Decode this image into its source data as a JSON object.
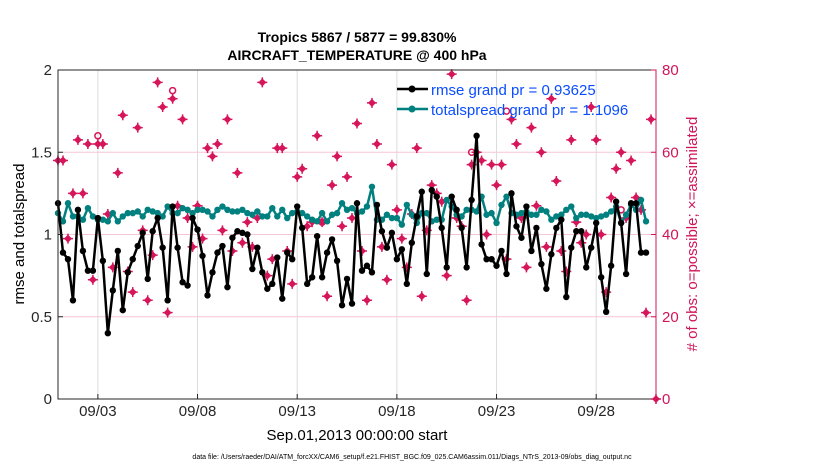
{
  "title_line1": "Tropics 5867 / 5877 = 99.830%",
  "title_line2": "AIRCRAFT_TEMPERATURE @ 400 hPa",
  "footnote": "data file: /Users/raeder/DAI/ATM_forcXX/CAM6_setup/f.e21.FHIST_BGC.f09_025.CAM6assim.011/Diags_NTrS_2013-09/obs_diag_output.nc",
  "colors": {
    "rmse": "#000000",
    "spread": "#00807f",
    "obs": "#d6155a",
    "legend_text": "#0a4dff",
    "grid_h": "#f5c6d6",
    "grid_v": "#dcdcdc"
  },
  "chart_data": {
    "type": "line",
    "title": "Tropics 5867 / 5877 = 99.830% AIRCRAFT_TEMPERATURE @ 400 hPa",
    "xlabel": "Sep.01,2013 00:00:00 start",
    "ylabel": "rmse and totalspread",
    "y2label": "# of obs: o=possible; ×=assimilated",
    "x_units": "days since Sep.01,2013 00:00:00",
    "x_step_days": 0.25,
    "xlim": [
      0,
      30
    ],
    "ylim": [
      0,
      2
    ],
    "y2lim": [
      0,
      80
    ],
    "xticks": [
      {
        "day": 2,
        "label": "09/03"
      },
      {
        "day": 7,
        "label": "09/08"
      },
      {
        "day": 12,
        "label": "09/13"
      },
      {
        "day": 17,
        "label": "09/18"
      },
      {
        "day": 22,
        "label": "09/23"
      },
      {
        "day": 27,
        "label": "09/28"
      }
    ],
    "yticks": [
      {
        "v": 0,
        "label": "0"
      },
      {
        "v": 0.5,
        "label": "0.5"
      },
      {
        "v": 1,
        "label": "1"
      },
      {
        "v": 1.5,
        "label": "1.5"
      },
      {
        "v": 2,
        "label": "2"
      }
    ],
    "y2ticks": [
      {
        "v": 0,
        "label": "0"
      },
      {
        "v": 20,
        "label": "20"
      },
      {
        "v": 40,
        "label": "40"
      },
      {
        "v": 60,
        "label": "60"
      },
      {
        "v": 80,
        "label": "80"
      }
    ],
    "grid": true,
    "legend_placement": "top-right",
    "series": [
      {
        "name": "rmse",
        "legend": "rmse grand pr = 0.93625",
        "axis": "left",
        "values": [
          1.19,
          0.89,
          0.85,
          0.6,
          1.15,
          0.9,
          0.78,
          0.78,
          1.1,
          0.84,
          0.4,
          0.66,
          0.9,
          0.54,
          0.77,
          0.85,
          0.93,
          1.01,
          0.73,
          1.02,
          1.1,
          0.92,
          0.6,
          1.17,
          0.92,
          0.71,
          0.69,
          1.1,
          1.03,
          0.87,
          0.63,
          0.77,
          0.89,
          0.93,
          0.68,
          0.98,
          1.02,
          1.01,
          1.0,
          0.79,
          0.92,
          0.77,
          0.67,
          0.7,
          0.86,
          0.61,
          0.89,
          0.85,
          1.17,
          1.04,
          0.7,
          0.74,
          0.99,
          0.74,
          0.89,
          0.97,
          0.84,
          0.57,
          0.73,
          0.58,
          1.19,
          0.78,
          0.81,
          0.77,
          1.18,
          1.02,
          0.92,
          1.01,
          0.85,
          0.91,
          0.7,
          0.95,
          1.11,
          1.26,
          0.76,
          1.27,
          1.23,
          1.04,
          0.8,
          1.23,
          1.15,
          1.04,
          0.8,
          1.21,
          1.6,
          0.94,
          0.85,
          0.85,
          0.81,
          0.9,
          0.76,
          1.25,
          1.05,
          0.98,
          1.17,
          0.9,
          1.04,
          0.82,
          0.67,
          0.88,
          1.04,
          1.09,
          0.62,
          0.92,
          1.02,
          1.02,
          0.8,
          0.92,
          1.07,
          0.74,
          0.53,
          0.81,
          1.2,
          1.07,
          0.76,
          1.19,
          1.19,
          0.89,
          0.89
        ]
      },
      {
        "name": "totalspread",
        "legend": "totalspread grand pr = 1.1096",
        "axis": "left",
        "values": [
          1.13,
          1.08,
          1.19,
          1.11,
          1.11,
          1.09,
          1.16,
          1.11,
          1.09,
          1.09,
          1.08,
          1.13,
          1.08,
          1.11,
          1.13,
          1.13,
          1.14,
          1.11,
          1.15,
          1.14,
          1.13,
          1.11,
          1.17,
          1.13,
          1.13,
          1.16,
          1.15,
          1.13,
          1.15,
          1.15,
          1.14,
          1.11,
          1.15,
          1.17,
          1.15,
          1.14,
          1.14,
          1.15,
          1.13,
          1.12,
          1.14,
          1.11,
          1.11,
          1.16,
          1.11,
          1.15,
          1.1,
          1.13,
          1.14,
          1.13,
          1.11,
          1.09,
          1.08,
          1.13,
          1.08,
          1.12,
          1.13,
          1.19,
          1.15,
          1.16,
          1.13,
          1.14,
          1.17,
          1.29,
          1.09,
          1.09,
          1.12,
          1.1,
          1.1,
          1.06,
          1.18,
          1.12,
          1.07,
          1.13,
          1.13,
          1.08,
          1.09,
          1.09,
          1.21,
          1.17,
          1.12,
          1.11,
          1.15,
          1.15,
          1.14,
          1.23,
          1.12,
          1.13,
          1.07,
          1.18,
          1.23,
          1.13,
          1.12,
          1.13,
          1.14,
          1.12,
          1.12,
          1.15,
          1.14,
          1.09,
          1.11,
          1.12,
          1.15,
          1.17,
          1.1,
          1.12,
          1.12,
          1.11,
          1.1,
          1.11,
          1.12,
          1.14,
          1.17,
          1.07,
          1.12,
          1.18,
          1.15,
          1.21,
          1.08
        ]
      },
      {
        "name": "obs_assimilated",
        "axis": "right",
        "values": [
          58,
          58,
          39,
          50,
          63,
          50,
          62,
          29,
          62,
          62,
          45,
          32,
          55,
          69,
          31,
          26,
          66,
          41,
          24,
          35,
          77,
          71,
          21,
          73,
          47,
          68,
          44,
          37,
          47,
          39,
          61,
          59,
          62,
          41,
          68,
          36,
          55,
          38,
          43,
          37,
          44,
          77,
          30,
          34,
          61,
          61,
          36,
          28,
          54,
          56,
          42,
          43,
          64,
          43,
          25,
          52,
          59,
          42,
          54,
          44,
          67,
          36,
          24,
          72,
          62,
          37,
          29,
          57,
          46,
          39,
          32,
          45,
          61,
          25,
          41,
          52,
          50,
          48,
          30,
          79,
          44,
          42,
          24,
          57,
          60,
          58,
          40,
          57,
          52,
          57,
          34,
          68,
          62,
          44,
          32,
          66,
          47,
          60,
          37,
          73,
          53,
          36,
          31,
          63,
          43,
          38,
          40,
          71,
          63,
          40,
          26,
          49,
          56,
          60,
          44,
          58,
          49,
          46,
          21,
          68,
          0
        ]
      },
      {
        "name": "obs_possible_extra",
        "axis": "right",
        "points": [
          {
            "day": 2.0,
            "value": 64
          },
          {
            "day": 5.75,
            "value": 75
          },
          {
            "day": 13.25,
            "value": 43
          },
          {
            "day": 20.75,
            "value": 60
          },
          {
            "day": 22.5,
            "value": 70
          },
          {
            "day": 28.25,
            "value": 46
          }
        ]
      }
    ]
  }
}
